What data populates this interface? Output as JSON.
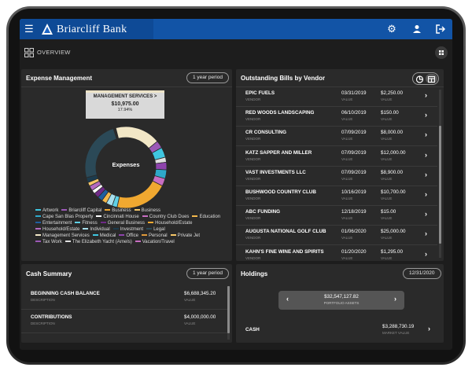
{
  "app": {
    "brand": "Briarcliff Bank"
  },
  "subbar": {
    "title": "OVERVIEW"
  },
  "expense": {
    "title": "Expense Management",
    "period": "1 year period",
    "center_label": "Expenses",
    "tooltip": {
      "title": "MANAGEMENT SERVICES >",
      "value": "$10,975.00",
      "percent": "17.94%"
    },
    "donut": [
      {
        "color": "#f2e7c6",
        "share": 0.1794
      },
      {
        "color": "#9b59b6",
        "share": 0.03
      },
      {
        "color": "#3fc6e0",
        "share": 0.04
      },
      {
        "color": "#e0e0e0",
        "share": 0.02
      },
      {
        "color": "#8e44ad",
        "share": 0.03
      },
      {
        "color": "#2ea8c9",
        "share": 0.035
      },
      {
        "color": "#c76ec2",
        "share": 0.03
      },
      {
        "color": "#f0a830",
        "share": 0.21
      },
      {
        "color": "#5fd1e6",
        "share": 0.02
      },
      {
        "color": "#a8e0ee",
        "share": 0.025
      },
      {
        "color": "#f3b84c",
        "share": 0.02
      },
      {
        "color": "#1f5fa0",
        "share": 0.02
      },
      {
        "color": "#6f2a87",
        "share": 0.02
      },
      {
        "color": "#ffffff",
        "share": 0.015
      },
      {
        "color": "#b46ac0",
        "share": 0.02
      },
      {
        "color": "#f6c768",
        "share": 0.015
      },
      {
        "color": "#1c3b4d",
        "share": 0.02
      },
      {
        "color": "#2b4957",
        "share": 0.2406
      }
    ],
    "legend": [
      {
        "label": "Artwork",
        "color": "#3fc6e0"
      },
      {
        "label": "Briarcliff Capital",
        "color": "#9b59b6"
      },
      {
        "label": "Business",
        "color": "#f0a830"
      },
      {
        "label": "Business",
        "color": "#f6c768"
      },
      {
        "label": "Cape San Blas Property",
        "color": "#2ea8c9"
      },
      {
        "label": "Cincinnati House",
        "color": "#ffffff"
      },
      {
        "label": "Country Club Dues",
        "color": "#c76ec2"
      },
      {
        "label": "Education",
        "color": "#f3b84c"
      },
      {
        "label": "Entertainment",
        "color": "#1f5fa0"
      },
      {
        "label": "Fitness",
        "color": "#5fd1e6"
      },
      {
        "label": "General Business",
        "color": "#6f2a87"
      },
      {
        "label": "Household/Estate",
        "color": "#f0a830"
      },
      {
        "label": "Household/Estate",
        "color": "#b46ac0"
      },
      {
        "label": "Individual",
        "color": "#a8e0ee"
      },
      {
        "label": "Investment",
        "color": "#1c3b4d"
      },
      {
        "label": "Legal",
        "color": "#2b4957"
      },
      {
        "label": "Management Services",
        "color": "#f2e7c6"
      },
      {
        "label": "Medical",
        "color": "#3fc6e0"
      },
      {
        "label": "Office",
        "color": "#8e44ad"
      },
      {
        "label": "Personal",
        "color": "#e09a3a"
      },
      {
        "label": "Private Jet",
        "color": "#f6c768"
      },
      {
        "label": "Tax Work",
        "color": "#9b59b6"
      },
      {
        "label": "The Elizabeth Yacht (Arnels)",
        "color": "#e0e0e0"
      },
      {
        "label": "Vacation/Travel",
        "color": "#c76ec2"
      }
    ]
  },
  "bills": {
    "title": "Outstanding Bills by Vendor",
    "vendor_label": "VENDOR",
    "value_label": "VALUE",
    "rows": [
      {
        "name": "EPIC FUELS",
        "date": "03/31/2019",
        "value": "$2,250.00"
      },
      {
        "name": "RED WOODS LANDSCAPING",
        "date": "06/10/2019",
        "value": "$150.00"
      },
      {
        "name": "CR CONSULTING",
        "date": "07/09/2019",
        "value": "$8,000.00"
      },
      {
        "name": "KATZ SAPPER AND MILLER",
        "date": "07/09/2019",
        "value": "$12,000.00"
      },
      {
        "name": "VAST INVESTMENTS LLC",
        "date": "07/09/2019",
        "value": "$8,900.00"
      },
      {
        "name": "BUSHWOOD COUNTRY CLUB",
        "date": "10/16/2019",
        "value": "$10,700.00"
      },
      {
        "name": "ABC FUNDING",
        "date": "12/18/2019",
        "value": "$15.00"
      },
      {
        "name": "AUGUSTA NATIONAL GOLF CLUB",
        "date": "01/06/2020",
        "value": "$25,000.00"
      },
      {
        "name": "KAHN'S FINE WINE AND SPIRITS",
        "date": "01/20/2020",
        "value": "$1,295.00"
      }
    ]
  },
  "cash": {
    "title": "Cash Summary",
    "period": "1 year period",
    "desc_label": "DESCRIPTION",
    "value_label": "VALUE",
    "rows": [
      {
        "name": "BEGINNING CASH BALANCE",
        "value": "$6,688,345.20"
      },
      {
        "name": "CONTRIBUTIONS",
        "value": "$4,000,000.00"
      }
    ]
  },
  "holdings": {
    "title": "Holdings",
    "date": "12/31/2020",
    "carousel_value": "$32,547,127.82",
    "carousel_label": "PORTFOLIO ASSETS",
    "row_name": "CASH",
    "row_value": "$3,288,730.19",
    "row_label": "MARKET VALUE"
  }
}
